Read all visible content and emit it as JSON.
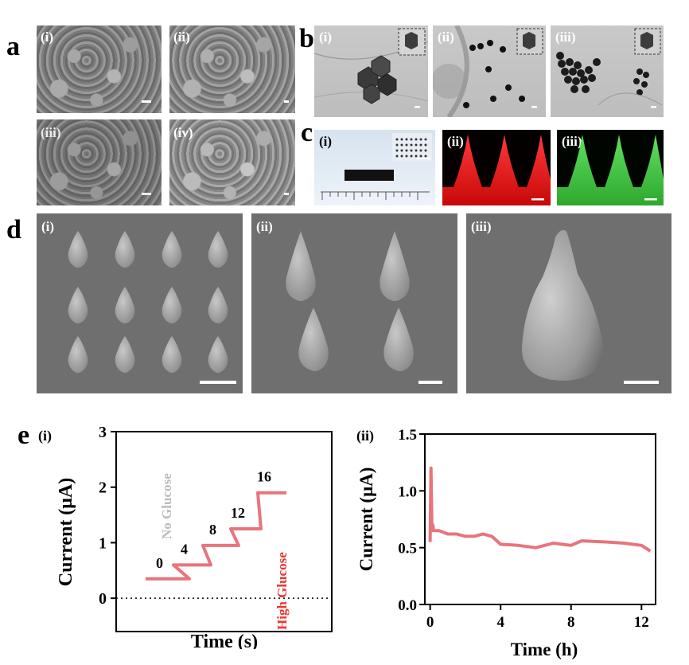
{
  "panels": {
    "a": {
      "letter": "a",
      "subs": [
        "(i)",
        "(ii)",
        "(iii)",
        "(iv)"
      ]
    },
    "b": {
      "letter": "b",
      "subs": [
        "(i)",
        "(ii)",
        "(iii)"
      ]
    },
    "c": {
      "letter": "c",
      "subs": [
        "(i)",
        "(ii)",
        "(iii)"
      ]
    },
    "d": {
      "letter": "d",
      "subs": [
        "(i)",
        "(ii)",
        "(iii)"
      ]
    },
    "e": {
      "letter": "e",
      "subs": [
        "(i)",
        "(ii)"
      ]
    }
  },
  "colors": {
    "trace": "#e8747c",
    "red_fluor": "#e01010",
    "green_fluor": "#35c235"
  },
  "chart_data": [
    {
      "type": "line",
      "panel": "e(i)",
      "xlabel": "Time (s)",
      "ylabel": "Current (μA)",
      "ylim": [
        0,
        3
      ],
      "yticks": [
        0,
        1,
        2,
        3
      ],
      "baseline": 0,
      "annotations": [
        "No Glucose",
        "0",
        "4",
        "8",
        "12",
        "16",
        "High Glucose"
      ],
      "steps": [
        {
          "label": "0",
          "value": 0.35
        },
        {
          "label": "4",
          "value": 0.6
        },
        {
          "label": "8",
          "value": 0.95
        },
        {
          "label": "12",
          "value": 1.25
        },
        {
          "label": "16",
          "value": 1.9
        }
      ]
    },
    {
      "type": "line",
      "panel": "e(ii)",
      "xlabel": "Time (h)",
      "ylabel": "Current (μA)",
      "ylim": [
        0,
        1.5
      ],
      "xlim": [
        -0.3,
        12.8
      ],
      "yticks": [
        "0.0",
        "0.5",
        "1.0",
        "1.5"
      ],
      "xticks": [
        "0",
        "4",
        "8",
        "12"
      ],
      "x": [
        0,
        0.05,
        0.1,
        0.15,
        0.2,
        0.3,
        0.5,
        1,
        1.5,
        2,
        2.5,
        3,
        3.5,
        4,
        5,
        6,
        7,
        8,
        8.6,
        10,
        11,
        12,
        12.5
      ],
      "y": [
        0.55,
        1.2,
        0.65,
        0.7,
        0.65,
        0.65,
        0.65,
        0.62,
        0.62,
        0.6,
        0.6,
        0.62,
        0.6,
        0.53,
        0.52,
        0.5,
        0.54,
        0.52,
        0.56,
        0.55,
        0.54,
        0.52,
        0.47
      ]
    }
  ]
}
